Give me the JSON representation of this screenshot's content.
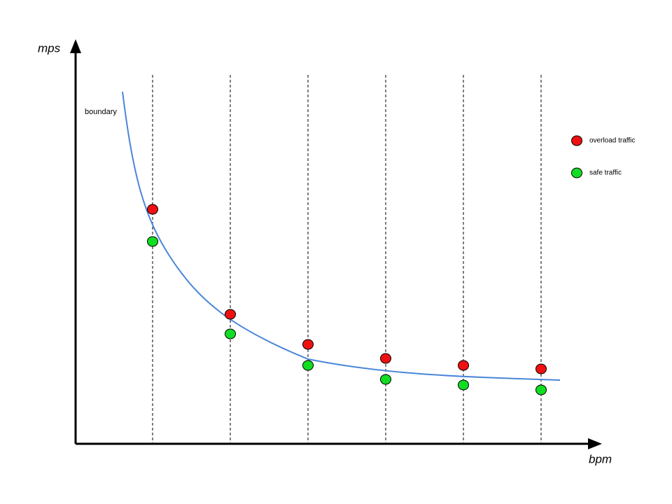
{
  "axes": {
    "y_label": "mps",
    "x_label": "bpm"
  },
  "curve_label": "boundary",
  "legend": {
    "overload": "overload traffic",
    "safe": "safe traffic"
  }
}
